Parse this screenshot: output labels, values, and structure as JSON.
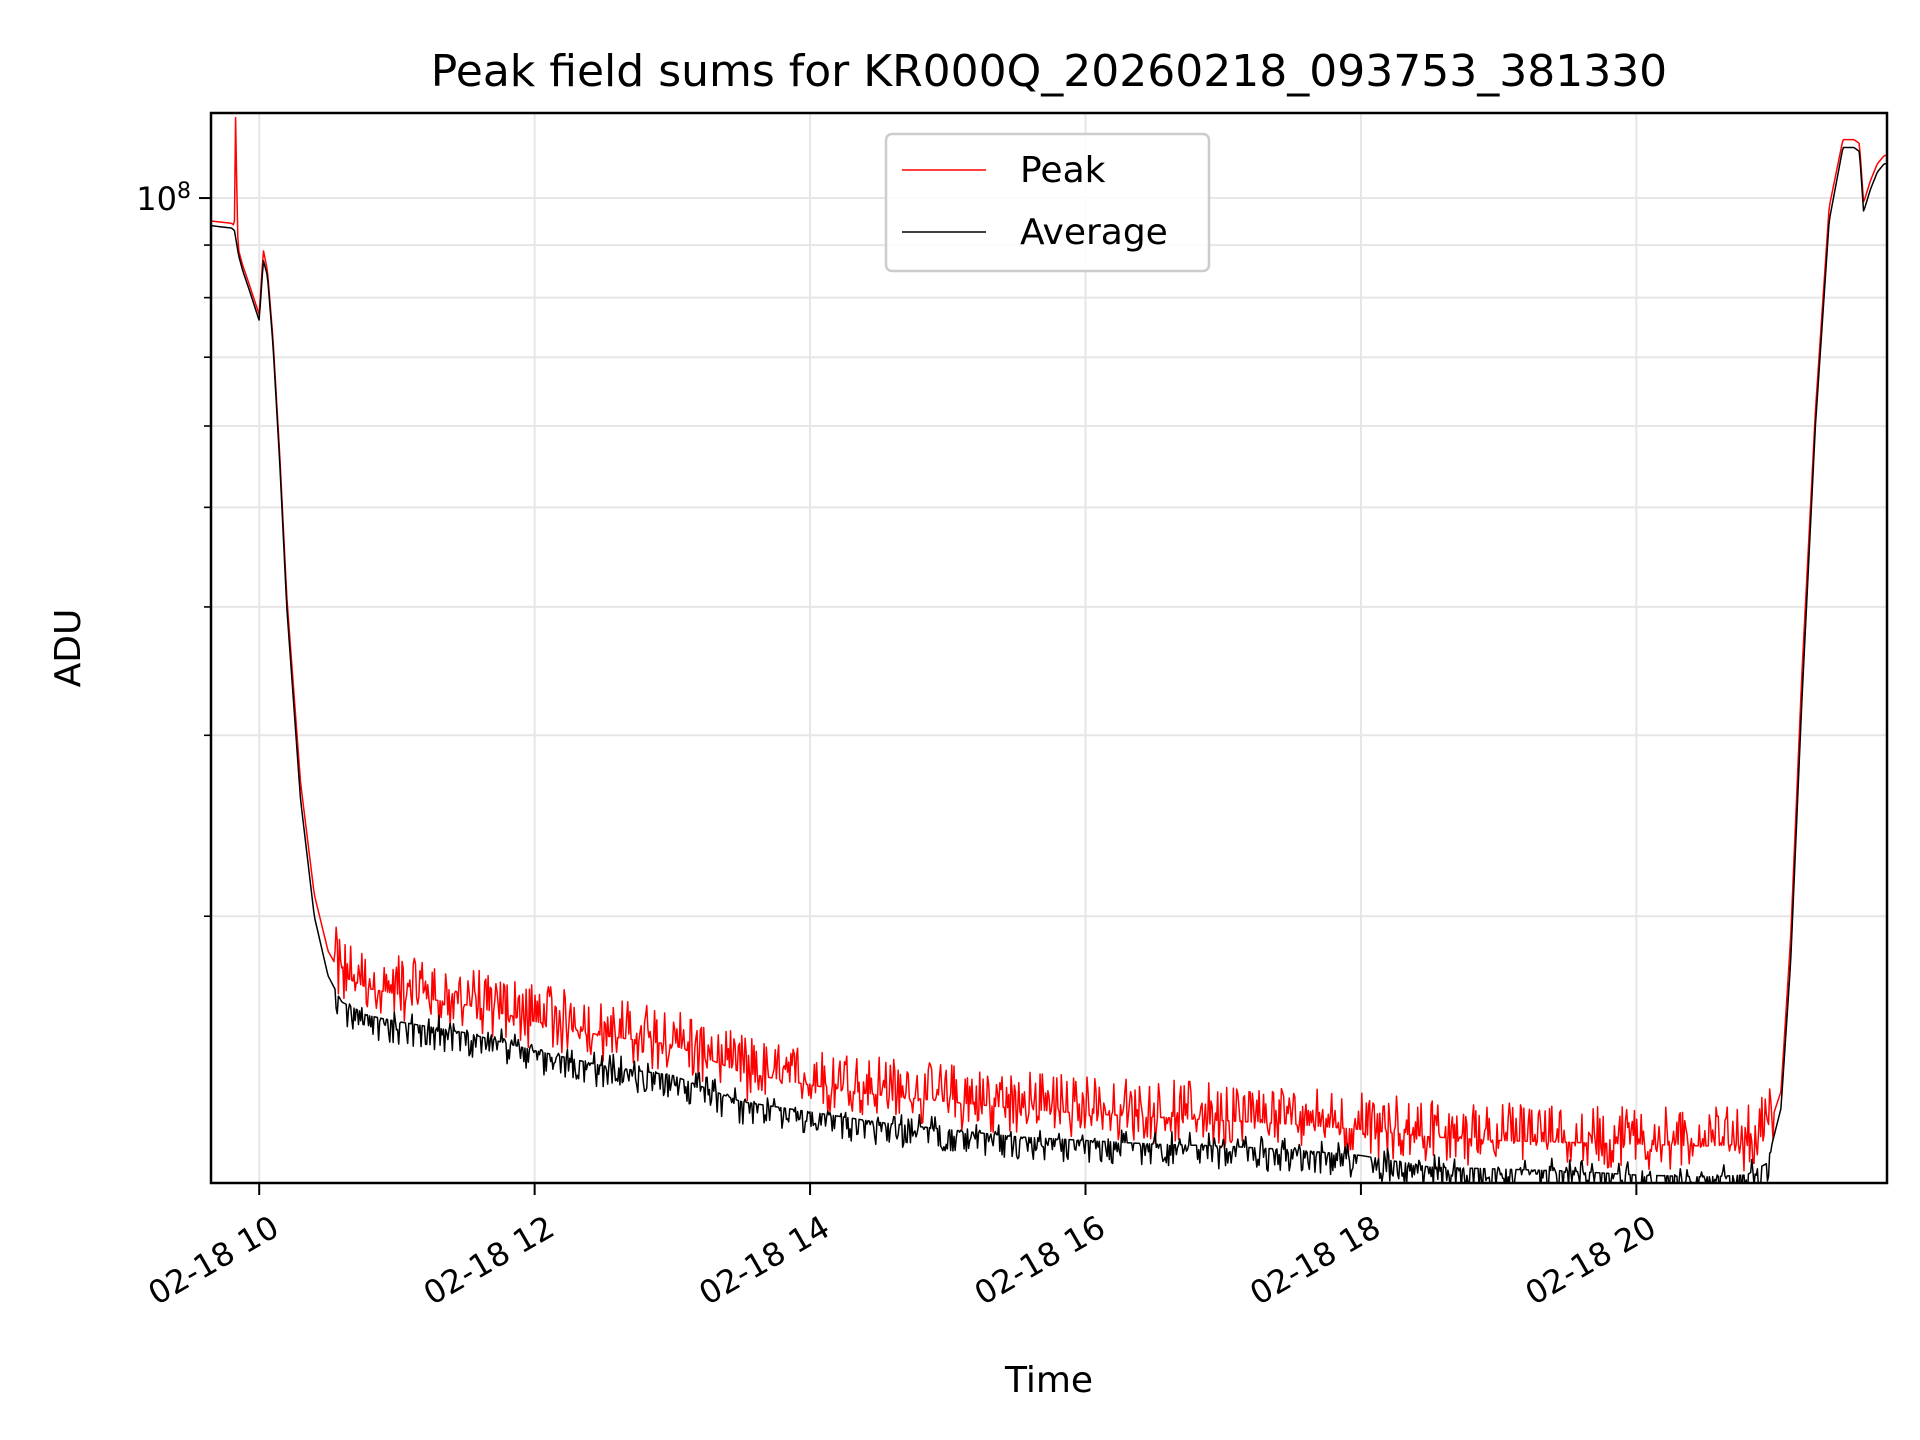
{
  "chart_data": {
    "type": "line",
    "title": "Peak field sums for KR000Q_20260218_093753_381330",
    "xlabel": "Time",
    "ylabel": "ADU",
    "yscale": "log",
    "grid": true,
    "legend_position": "top-center",
    "x_unit": "hours on 2026-02-18",
    "xlim": [
      9.65,
      21.82
    ],
    "ylim": [
      11000000,
      121000000
    ],
    "xticks": [
      {
        "value": 10,
        "label": "02-18 10"
      },
      {
        "value": 12,
        "label": "02-18 12"
      },
      {
        "value": 14,
        "label": "02-18 14"
      },
      {
        "value": 16,
        "label": "02-18 16"
      },
      {
        "value": 18,
        "label": "02-18 18"
      },
      {
        "value": 20,
        "label": "02-18 20"
      }
    ],
    "yticks_major": [
      {
        "value": 100000000,
        "base": "10",
        "exponent": "8"
      }
    ],
    "yticks_minor": [
      20000000,
      30000000,
      40000000,
      50000000,
      60000000,
      70000000,
      80000000,
      90000000
    ],
    "legend": [
      {
        "name": "Peak",
        "color": "#ff0000"
      },
      {
        "name": "Average",
        "color": "#000000"
      }
    ],
    "series": [
      {
        "name": "Average",
        "color": "#000000",
        "x": [
          9.65,
          9.8,
          9.82,
          9.85,
          9.88,
          9.92,
          10.0,
          10.03,
          10.06,
          10.1,
          10.15,
          10.2,
          10.3,
          10.4,
          10.5,
          10.6,
          10.8,
          11.0,
          11.5,
          12.0,
          12.5,
          13.0,
          13.5,
          14.0,
          14.5,
          15.0,
          15.5,
          16.0,
          16.5,
          17.0,
          17.5,
          18.0,
          18.5,
          19.0,
          19.5,
          20.0,
          20.5,
          20.8,
          20.95,
          21.05,
          21.12,
          21.2,
          21.3,
          21.4,
          21.5,
          21.58,
          21.62,
          21.65,
          21.7,
          21.75,
          21.8
        ],
        "y": [
          94000000,
          93500000,
          93000000,
          88000000,
          85000000,
          82000000,
          76000000,
          87000000,
          84000000,
          72000000,
          55000000,
          40000000,
          26000000,
          20000000,
          17500000,
          16500000,
          16000000,
          15800000,
          15400000,
          14800000,
          14300000,
          14000000,
          13200000,
          12900000,
          12600000,
          12400000,
          12200000,
          12100000,
          12000000,
          11950000,
          11850000,
          11700000,
          11400000,
          11350000,
          11300000,
          11200000,
          11150000,
          11200000,
          11500000,
          13000000,
          18000000,
          32000000,
          60000000,
          95000000,
          112000000,
          112000000,
          111000000,
          97000000,
          102000000,
          106000000,
          108000000
        ]
      },
      {
        "name": "Peak",
        "color": "#ff0000",
        "x": [
          9.65,
          9.8,
          9.82,
          9.83,
          9.84,
          9.85,
          9.88,
          9.92,
          10.0,
          10.03,
          10.06,
          10.1,
          10.15,
          10.2,
          10.3,
          10.4,
          10.5,
          10.6,
          10.8,
          11.0,
          11.5,
          12.0,
          12.5,
          13.0,
          13.5,
          14.0,
          14.5,
          15.0,
          15.5,
          16.0,
          16.5,
          17.0,
          17.5,
          18.0,
          18.5,
          19.0,
          19.5,
          20.0,
          20.5,
          20.8,
          20.95,
          21.05,
          21.12,
          21.2,
          21.3,
          21.4,
          21.5,
          21.58,
          21.62,
          21.65,
          21.7,
          21.75,
          21.8
        ],
        "y": [
          95000000,
          94500000,
          94000000,
          125000000,
          94000000,
          89000000,
          86000000,
          83000000,
          77000000,
          89000000,
          85000000,
          73000000,
          56000000,
          41000000,
          27000000,
          21000000,
          18500000,
          17500000,
          17000000,
          16800000,
          16400000,
          15800000,
          15300000,
          15000000,
          14100000,
          13700000,
          13400000,
          13200000,
          13000000,
          12850000,
          12750000,
          12650000,
          12550000,
          12400000,
          12200000,
          12100000,
          12050000,
          12000000,
          11950000,
          12000000,
          12300000,
          13500000,
          19000000,
          34000000,
          62000000,
          98000000,
          114000000,
          114000000,
          113000000,
          99000000,
          104000000,
          108000000,
          110000000
        ]
      }
    ]
  }
}
